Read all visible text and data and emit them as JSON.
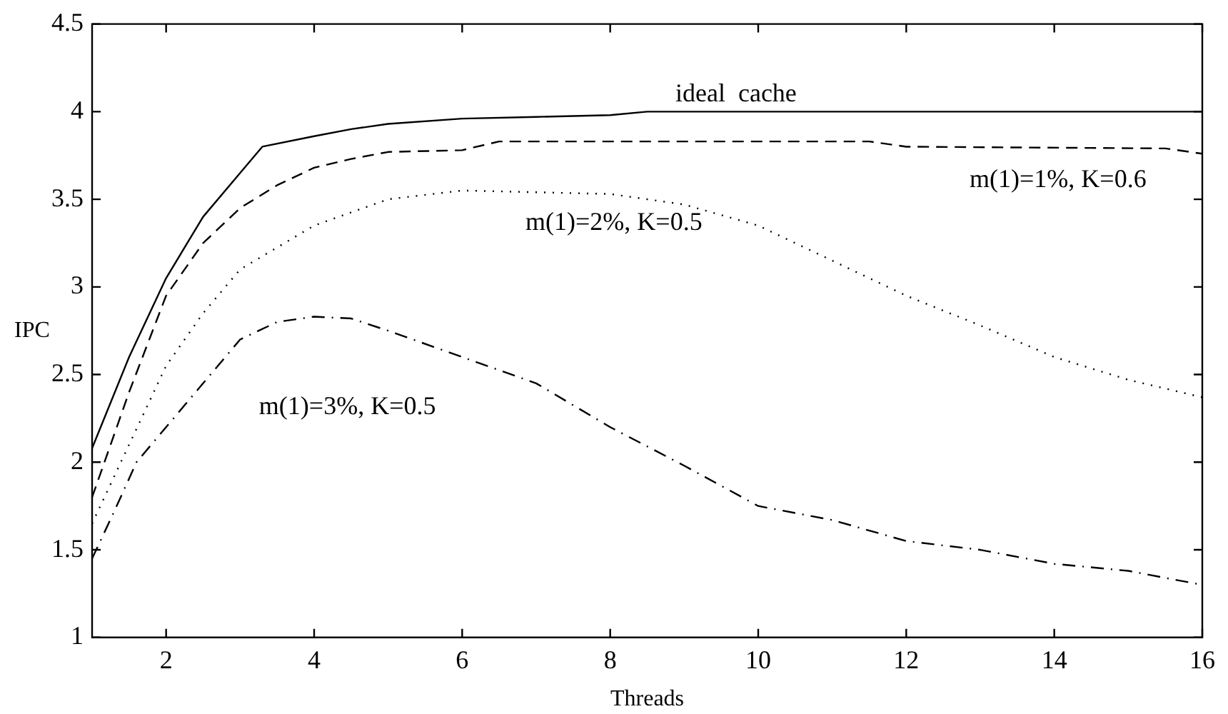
{
  "chart_data": {
    "type": "line",
    "xlabel": "Threads",
    "ylabel": "IPC",
    "xlim": [
      1,
      16
    ],
    "xticks": [
      2,
      4,
      6,
      8,
      10,
      12,
      14,
      16
    ],
    "ylim": [
      1,
      4.5
    ],
    "yticks": [
      1,
      1.5,
      2,
      2.5,
      3,
      3.5,
      4,
      4.5
    ],
    "grid": false,
    "legend": false,
    "marker": "none",
    "series": [
      {
        "name": "ideal  cache",
        "color": "#000000",
        "line_style": "solid",
        "x": [
          1,
          1.5,
          2,
          2.5,
          3,
          3.3,
          4,
          4.5,
          5,
          6,
          7,
          8,
          8.5,
          16
        ],
        "values": [
          2.08,
          2.6,
          3.05,
          3.4,
          3.65,
          3.8,
          3.86,
          3.9,
          3.93,
          3.96,
          3.97,
          3.98,
          4.0,
          4.0
        ]
      },
      {
        "name": "m(1)=1%, K=0.6",
        "color": "#000000",
        "line_style": "dashed",
        "x": [
          1,
          1.5,
          2,
          2.5,
          3,
          3.5,
          4,
          4.5,
          5,
          6,
          6.5,
          11.5,
          12,
          15.5,
          16
        ],
        "values": [
          1.8,
          2.4,
          2.95,
          3.25,
          3.45,
          3.58,
          3.68,
          3.73,
          3.77,
          3.78,
          3.83,
          3.83,
          3.8,
          3.79,
          3.76
        ]
      },
      {
        "name": "m(1)=2%, K=0.5",
        "color": "#000000",
        "line_style": "dotted",
        "x": [
          1,
          1.5,
          2,
          2.5,
          3,
          4,
          5,
          6,
          8,
          9,
          10,
          11,
          12,
          13,
          14,
          15,
          16
        ],
        "values": [
          1.65,
          2.1,
          2.55,
          2.85,
          3.1,
          3.35,
          3.5,
          3.55,
          3.53,
          3.47,
          3.35,
          3.15,
          2.95,
          2.78,
          2.6,
          2.47,
          2.37
        ]
      },
      {
        "name": "m(1)=3%, K=0.5",
        "color": "#000000",
        "line_style": "dashdot",
        "x": [
          1,
          1.3,
          1.6,
          2,
          2.5,
          3,
          3.5,
          4,
          4.5,
          5,
          6,
          7,
          8,
          9,
          10,
          11,
          12,
          13,
          14,
          15,
          16
        ],
        "values": [
          1.45,
          1.72,
          2.0,
          2.2,
          2.45,
          2.7,
          2.8,
          2.83,
          2.82,
          2.75,
          2.6,
          2.45,
          2.2,
          1.98,
          1.75,
          1.67,
          1.55,
          1.5,
          1.42,
          1.38,
          1.3
        ]
      }
    ]
  }
}
